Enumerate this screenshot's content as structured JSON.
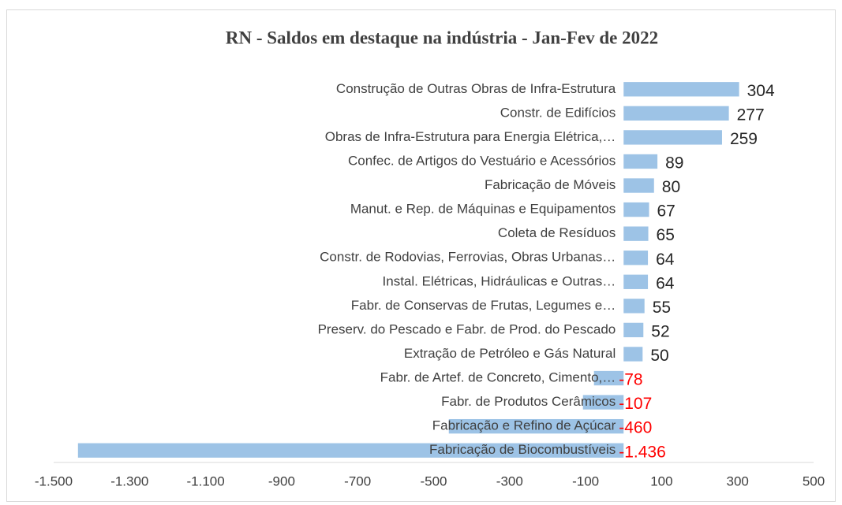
{
  "chart_data": {
    "type": "barh",
    "title": "RN - Saldos em destaque na indústria - Jan-Fev de 2022",
    "categories": [
      "Construção de Outras Obras de Infra-Estrutura",
      "Constr. de Edifícios",
      "Obras de Infra-Estrutura para Energia Elétrica,…",
      "Confec. de Artigos do Vestuário e Acessórios",
      "Fabricação de Móveis",
      "Manut. e Rep. de Máquinas e Equipamentos",
      "Coleta de Resíduos",
      "Constr. de Rodovias, Ferrovias, Obras Urbanas…",
      "Instal. Elétricas, Hidráulicas e Outras…",
      "Fabr. de Conservas de Frutas, Legumes e…",
      "Preserv. do Pescado e Fabr. de Prod. do Pescado",
      "Extração de Petróleo e Gás Natural",
      "Fabr. de Artef. de Concreto, Cimento,…",
      "Fabr. de Produtos Cerâmicos",
      "Fabricação e Refino de Açúcar",
      "Fabricação de Biocombustíveis"
    ],
    "values": [
      304,
      277,
      259,
      89,
      80,
      67,
      65,
      64,
      64,
      55,
      52,
      50,
      -78,
      -107,
      -460,
      -1436
    ],
    "value_labels": [
      "304",
      "277",
      "259",
      "89",
      "80",
      "67",
      "65",
      "64",
      "64",
      "55",
      "52",
      "50",
      "-78",
      "-107",
      "-460",
      "-1.436"
    ],
    "color": "#9dc3e6",
    "negative_label_color": "#ff0000",
    "xlim": [
      -1500,
      500
    ],
    "xticks": [
      {
        "value": -1500,
        "label": "-1.500"
      },
      {
        "value": -1300,
        "label": "-1.300"
      },
      {
        "value": -1100,
        "label": "-1.100"
      },
      -900,
      -700,
      -500,
      -300,
      -100,
      100,
      300,
      500
    ]
  }
}
